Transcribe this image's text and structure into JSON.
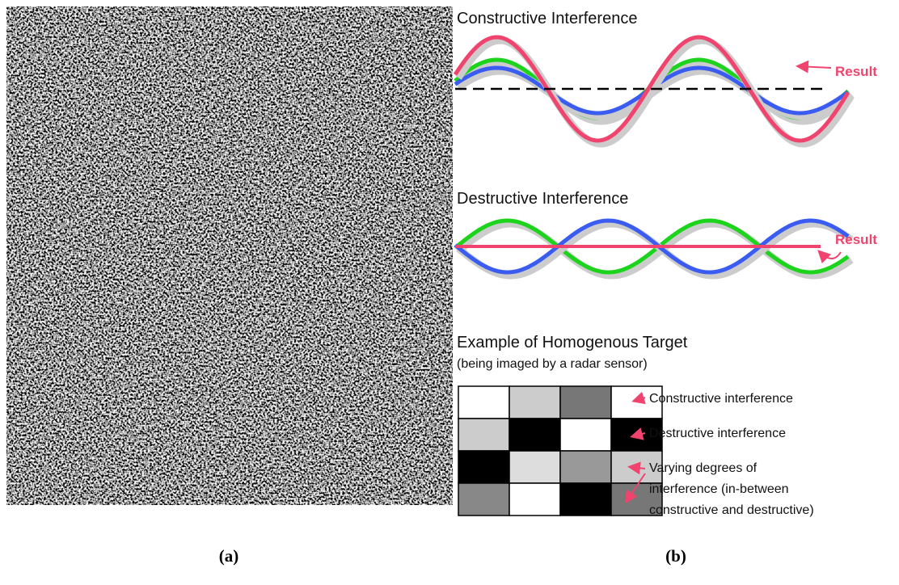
{
  "panel_a": {
    "label": "(a)"
  },
  "panel_b": {
    "label": "(b)",
    "constructive": {
      "title": "Constructive Interference",
      "result": "Result"
    },
    "destructive": {
      "title": "Destructive Interference",
      "result": "Result"
    },
    "example": {
      "title": "Example of Homogenous Target",
      "subtitle": "(being imaged by a radar sensor)",
      "annotations": [
        [
          "Constructive interference"
        ],
        [
          "Destructive interference"
        ],
        [
          "Varying degrees of",
          "interference (in-between",
          "constructive and destructive)"
        ]
      ]
    }
  }
}
